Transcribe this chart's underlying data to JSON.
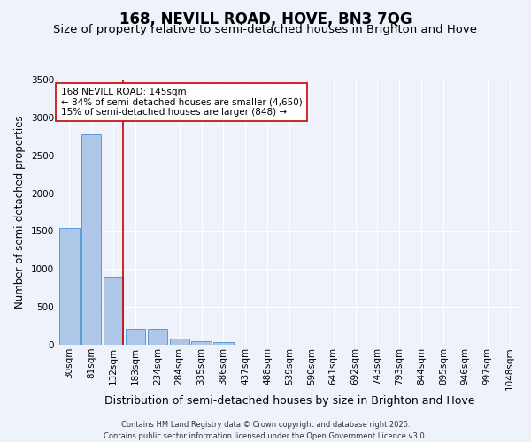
{
  "title": "168, NEVILL ROAD, HOVE, BN3 7QG",
  "subtitle": "Size of property relative to semi-detached houses in Brighton and Hove",
  "xlabel": "Distribution of semi-detached houses by size in Brighton and Hove",
  "ylabel": "Number of semi-detached properties",
  "categories": [
    "30sqm",
    "81sqm",
    "132sqm",
    "183sqm",
    "234sqm",
    "284sqm",
    "335sqm",
    "386sqm",
    "437sqm",
    "488sqm",
    "539sqm",
    "590sqm",
    "641sqm",
    "692sqm",
    "743sqm",
    "793sqm",
    "844sqm",
    "895sqm",
    "946sqm",
    "997sqm",
    "1048sqm"
  ],
  "values": [
    1540,
    2780,
    900,
    205,
    205,
    85,
    45,
    30,
    0,
    0,
    0,
    0,
    0,
    0,
    0,
    0,
    0,
    0,
    0,
    0,
    0
  ],
  "bar_color": "#aec6e8",
  "bar_edgecolor": "#5b9bd5",
  "background_color": "#eef2fa",
  "grid_color": "#ffffff",
  "vline_color": "#cc0000",
  "vline_x_index": 2.45,
  "annotation_title": "168 NEVILL ROAD: 145sqm",
  "annotation_line1": "← 84% of semi-detached houses are smaller (4,650)",
  "annotation_line2": "15% of semi-detached houses are larger (848) →",
  "annotation_box_color": "white",
  "annotation_box_edgecolor": "#cc0000",
  "footer1": "Contains HM Land Registry data © Crown copyright and database right 2025.",
  "footer2": "Contains public sector information licensed under the Open Government Licence v3.0.",
  "ylim": [
    0,
    3500
  ],
  "title_fontsize": 12,
  "subtitle_fontsize": 9.5,
  "ylabel_fontsize": 8.5,
  "xlabel_fontsize": 9,
  "tick_fontsize": 7.5,
  "annotation_fontsize": 7.5,
  "footer_fontsize": 6
}
